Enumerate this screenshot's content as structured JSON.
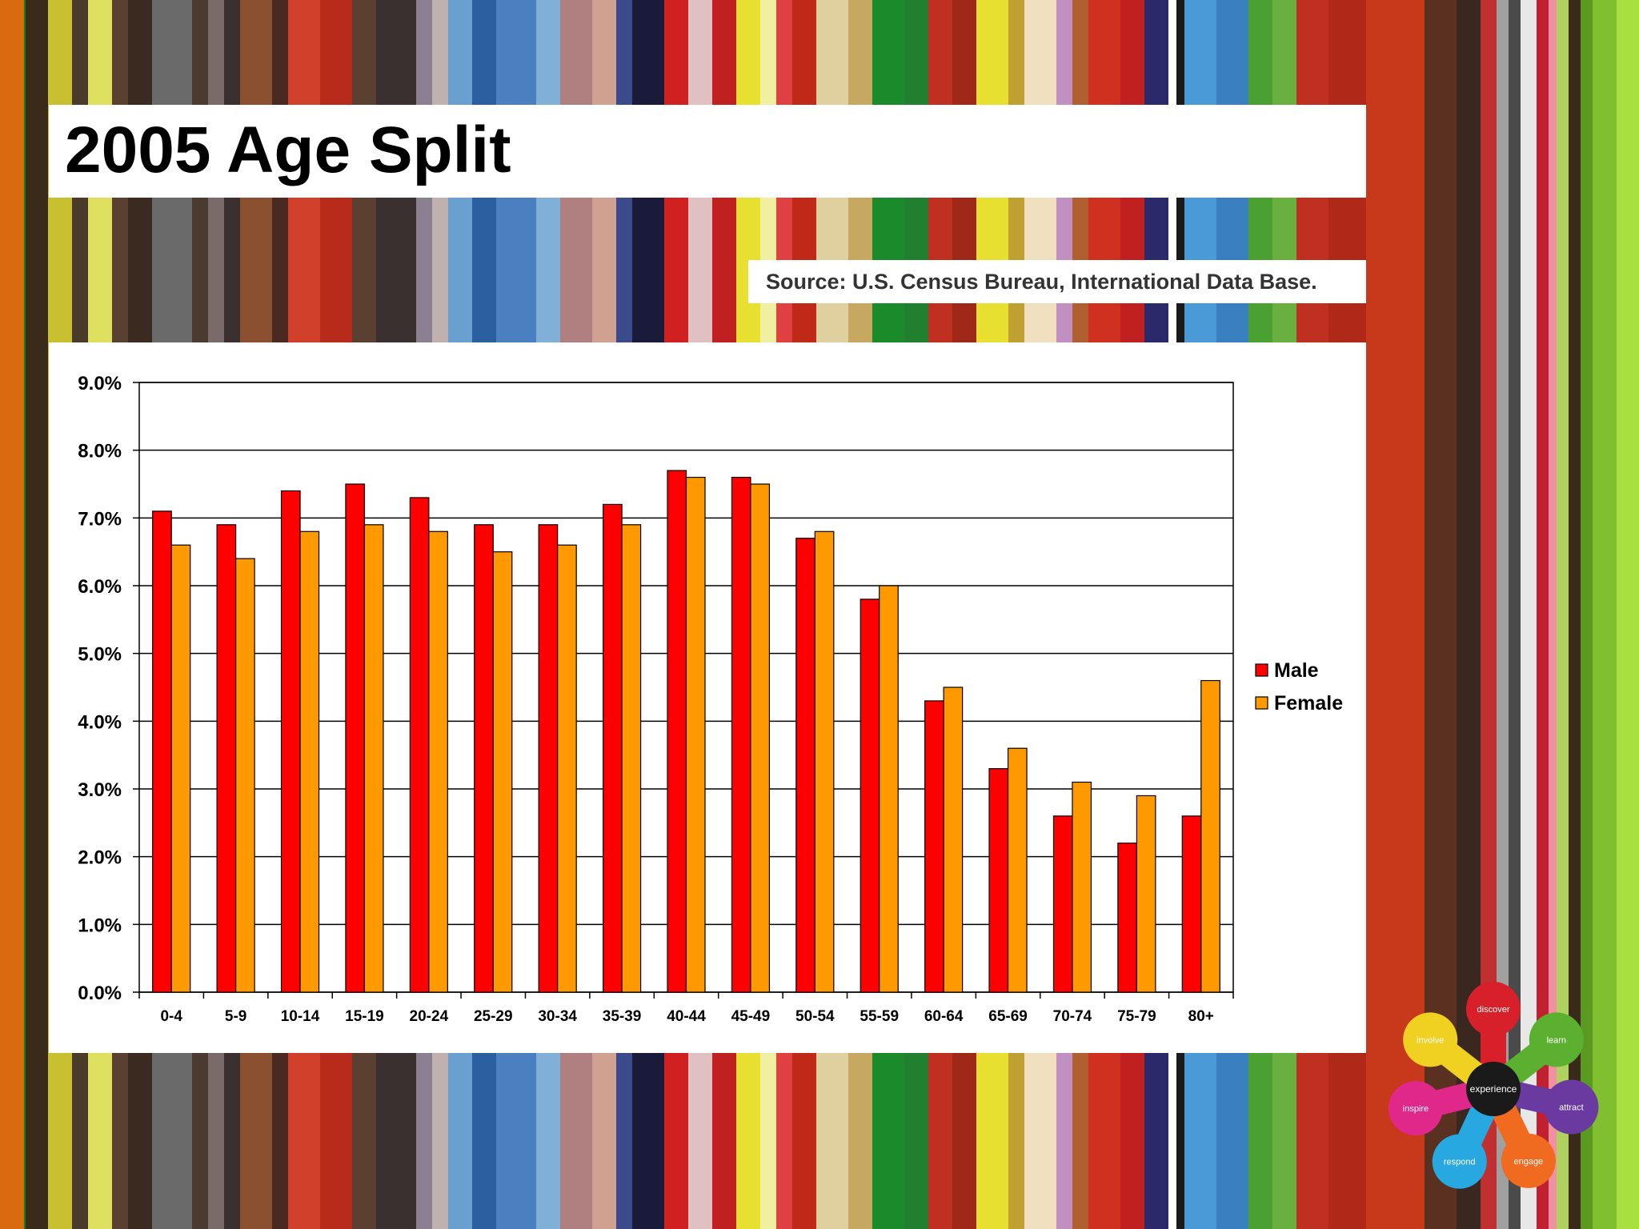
{
  "slide": {
    "title": "2005 Age Split",
    "source": "Source: U.S. Census Bureau, International Data Base."
  },
  "chart_data": {
    "type": "bar",
    "categories": [
      "0-4",
      "5-9",
      "10-14",
      "15-19",
      "20-24",
      "25-29",
      "30-34",
      "35-39",
      "40-44",
      "45-49",
      "50-54",
      "55-59",
      "60-64",
      "65-69",
      "70-74",
      "75-79",
      "80+"
    ],
    "series": [
      {
        "name": "Male",
        "color": "#ff0000",
        "values": [
          7.1,
          6.9,
          7.4,
          7.5,
          7.3,
          6.9,
          6.9,
          7.2,
          7.7,
          7.6,
          6.7,
          5.8,
          4.3,
          3.3,
          2.6,
          2.2,
          2.6
        ]
      },
      {
        "name": "Female",
        "color": "#ff9900",
        "values": [
          6.6,
          6.4,
          6.8,
          6.9,
          6.8,
          6.5,
          6.6,
          6.9,
          7.6,
          7.5,
          6.8,
          6.0,
          4.5,
          3.6,
          3.1,
          2.9,
          4.6
        ]
      }
    ],
    "ylim": [
      0,
      9
    ],
    "yticks": [
      0,
      1,
      2,
      3,
      4,
      5,
      6,
      7,
      8,
      9
    ],
    "ytick_labels": [
      "0.0%",
      "1.0%",
      "2.0%",
      "3.0%",
      "4.0%",
      "5.0%",
      "6.0%",
      "7.0%",
      "8.0%",
      "9.0%"
    ],
    "grid": true,
    "legend_position": "right"
  },
  "logo": {
    "center_label": "experience",
    "petals": [
      {
        "label": "discover",
        "color": "#d8202a"
      },
      {
        "label": "learn",
        "color": "#5cb030"
      },
      {
        "label": "attract",
        "color": "#6a3aa0"
      },
      {
        "label": "engage",
        "color": "#f06a20"
      },
      {
        "label": "respond",
        "color": "#28a8e0"
      },
      {
        "label": "inspire",
        "color": "#e0288a"
      },
      {
        "label": "involve",
        "color": "#f0d020"
      }
    ]
  }
}
